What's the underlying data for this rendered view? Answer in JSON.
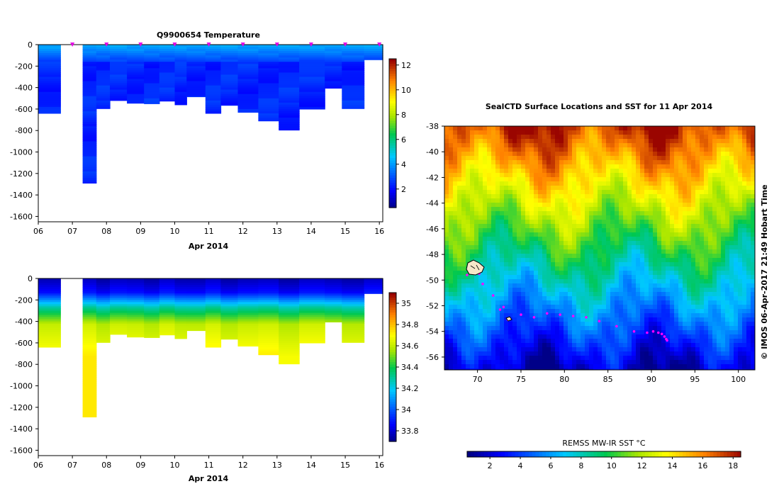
{
  "chart_data": [
    {
      "type": "heatmap",
      "title": "Q9900654  Temperature",
      "xlabel": "Apr 2014",
      "ylabel": "",
      "x_ticks": [
        "06",
        "07",
        "08",
        "09",
        "10",
        "11",
        "12",
        "13",
        "14",
        "15",
        "16"
      ],
      "y_ticks": [
        "0",
        "-200",
        "-400",
        "-600",
        "-800",
        "-1000",
        "-1200",
        "-1400",
        "-1600"
      ],
      "xlim": [
        6,
        16.1
      ],
      "ylim": [
        -1650,
        0
      ],
      "colorbar": {
        "ticks": [
          "2",
          "4",
          "6",
          "8",
          "10",
          "12"
        ],
        "range": [
          0.5,
          12.5
        ]
      },
      "profile_markers": [
        7,
        8,
        9,
        10,
        11,
        12,
        13,
        14,
        15,
        16
      ],
      "profiles": [
        {
          "x0": 6.0,
          "x1": 6.65,
          "max_depth": -640
        },
        {
          "x0": 7.3,
          "x1": 7.7,
          "max_depth": -1290
        },
        {
          "x0": 7.7,
          "x1": 8.1,
          "max_depth": -595
        },
        {
          "x0": 8.1,
          "x1": 8.6,
          "max_depth": -520
        },
        {
          "x0": 8.6,
          "x1": 9.1,
          "max_depth": -545
        },
        {
          "x0": 9.1,
          "x1": 9.55,
          "max_depth": -550
        },
        {
          "x0": 9.55,
          "x1": 10.0,
          "max_depth": -525
        },
        {
          "x0": 10.0,
          "x1": 10.35,
          "max_depth": -560
        },
        {
          "x0": 10.35,
          "x1": 10.9,
          "max_depth": -485
        },
        {
          "x0": 10.9,
          "x1": 11.35,
          "max_depth": -640
        },
        {
          "x0": 11.35,
          "x1": 11.85,
          "max_depth": -565
        },
        {
          "x0": 11.85,
          "x1": 12.45,
          "max_depth": -630
        },
        {
          "x0": 12.45,
          "x1": 13.05,
          "max_depth": -710
        },
        {
          "x0": 13.05,
          "x1": 13.65,
          "max_depth": -795
        },
        {
          "x0": 13.65,
          "x1": 14.4,
          "max_depth": -600
        },
        {
          "x0": 14.4,
          "x1": 14.9,
          "max_depth": -405
        },
        {
          "x0": 14.9,
          "x1": 15.55,
          "max_depth": -595
        },
        {
          "x0": 15.55,
          "x1": 16.1,
          "max_depth": -140
        }
      ]
    },
    {
      "type": "heatmap",
      "title": "",
      "xlabel": "Apr 2014",
      "ylabel": "",
      "x_ticks": [
        "06",
        "07",
        "08",
        "09",
        "10",
        "11",
        "12",
        "13",
        "14",
        "15",
        "16"
      ],
      "y_ticks": [
        "0",
        "-200",
        "-400",
        "-600",
        "-800",
        "-1000",
        "-1200",
        "-1400",
        "-1600"
      ],
      "xlim": [
        6,
        16.1
      ],
      "ylim": [
        -1650,
        0
      ],
      "colorbar": {
        "ticks": [
          "33.8",
          "34",
          "34.2",
          "34.4",
          "34.6",
          "34.8",
          "35"
        ],
        "range": [
          33.7,
          35.1
        ]
      }
    },
    {
      "type": "heatmap",
      "title": "SealCTD Surface Locations and SST for 11 Apr 2014",
      "xlabel": "",
      "ylabel": "",
      "x_ticks": [
        "70",
        "75",
        "80",
        "85",
        "90",
        "95",
        "100"
      ],
      "y_ticks": [
        "-38",
        "-40",
        "-42",
        "-44",
        "-46",
        "-48",
        "-50",
        "-52",
        "-54",
        "-56"
      ],
      "xlim": [
        66.2,
        101.9
      ],
      "ylim": [
        -57,
        -38
      ],
      "side_text": "© IMOS 06-Apr-2017 21:49 Hobart Time",
      "colorbar": {
        "title": "REMSS MW-IR SST °C",
        "ticks": [
          "2",
          "4",
          "6",
          "8",
          "10",
          "12",
          "14",
          "16",
          "18"
        ],
        "range": [
          0.5,
          18.5
        ]
      },
      "track_points": [
        [
          68.8,
          -49.6
        ],
        [
          69.6,
          -49.3
        ],
        [
          70.2,
          -49.5
        ],
        [
          70.6,
          -50.3
        ],
        [
          71.8,
          -51.2
        ],
        [
          72.6,
          -52.3
        ],
        [
          73.0,
          -52.1
        ],
        [
          73.5,
          -53.1
        ],
        [
          75.0,
          -52.7
        ],
        [
          76.5,
          -52.9
        ],
        [
          78.0,
          -52.6
        ],
        [
          79.5,
          -52.7
        ],
        [
          81.0,
          -52.8
        ],
        [
          82.5,
          -52.9
        ],
        [
          84.0,
          -53.2
        ],
        [
          86.0,
          -53.6
        ],
        [
          88.0,
          -54.0
        ],
        [
          89.5,
          -54.1
        ],
        [
          90.2,
          -54.0
        ],
        [
          90.8,
          -54.1
        ],
        [
          91.2,
          -54.2
        ],
        [
          91.5,
          -54.4
        ],
        [
          91.7,
          -54.6
        ],
        [
          91.8,
          -54.7
        ]
      ]
    }
  ]
}
